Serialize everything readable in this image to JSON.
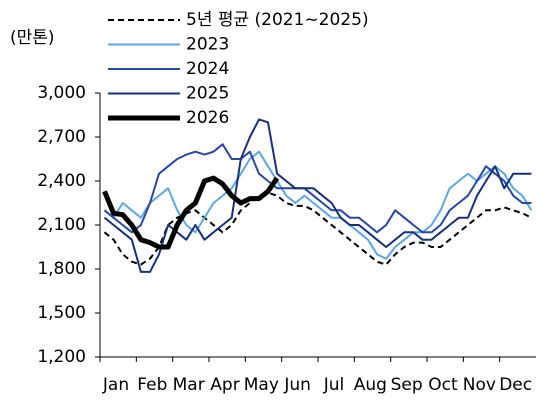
{
  "chart_data": {
    "type": "line",
    "y_label": "(만톤)",
    "categories": [
      "Jan",
      null,
      null,
      null,
      "Feb",
      null,
      null,
      null,
      "Mar",
      null,
      null,
      null,
      "Apr",
      null,
      null,
      null,
      "May",
      null,
      null,
      null,
      "Jun",
      null,
      null,
      null,
      "Jul",
      null,
      null,
      null,
      "Aug",
      null,
      null,
      null,
      "Sep",
      null,
      null,
      null,
      "Oct",
      null,
      null,
      null,
      "Nov",
      null,
      null,
      null,
      "Dec",
      null,
      null,
      null
    ],
    "ylim": [
      1200,
      3000
    ],
    "yticks": [
      {
        "value": 1200,
        "label": "1,200"
      },
      {
        "value": 1500,
        "label": "1,500"
      },
      {
        "value": 1800,
        "label": "1,800"
      },
      {
        "value": 2100,
        "label": "2,100"
      },
      {
        "value": 2400,
        "label": "2,400"
      },
      {
        "value": 2700,
        "label": "2,700"
      },
      {
        "value": 3000,
        "label": "3,000"
      }
    ],
    "series": [
      {
        "name": "5년 평균 (2021~2025)",
        "color": "#000000",
        "dash": true,
        "width": 2,
        "values": [
          2050,
          2000,
          1900,
          1850,
          1830,
          1870,
          1950,
          2100,
          2150,
          2180,
          2200,
          2150,
          2100,
          2050,
          2100,
          2200,
          2250,
          2300,
          2320,
          2300,
          2250,
          2230,
          2230,
          2200,
          2150,
          2100,
          2050,
          2000,
          1950,
          1900,
          1850,
          1830,
          1900,
          1950,
          1980,
          1980,
          1950,
          1950,
          2000,
          2050,
          2100,
          2150,
          2200,
          2200,
          2220,
          2200,
          2180,
          2150
        ]
      },
      {
        "name": "2023",
        "color": "#5aa9e6",
        "width": 2,
        "values": [
          2200,
          2150,
          2250,
          2200,
          2150,
          2250,
          2300,
          2350,
          2200,
          2100,
          2050,
          2150,
          2250,
          2300,
          2350,
          2450,
          2550,
          2600,
          2500,
          2400,
          2300,
          2250,
          2300,
          2250,
          2200,
          2150,
          2150,
          2100,
          2050,
          2000,
          1900,
          1870,
          1950,
          2000,
          2050,
          2050,
          2100,
          2200,
          2350,
          2400,
          2450,
          2400,
          2450,
          2500,
          2450,
          2350,
          2300,
          2200
        ]
      },
      {
        "name": "2024",
        "color": "#2846a8",
        "width": 2,
        "values": [
          2200,
          2150,
          2100,
          2050,
          2100,
          2250,
          2450,
          2500,
          2550,
          2580,
          2600,
          2580,
          2600,
          2650,
          2550,
          2550,
          2600,
          2450,
          2400,
          2350,
          2350,
          2350,
          2350,
          2300,
          2250,
          2200,
          2200,
          2150,
          2150,
          2100,
          2050,
          2100,
          2200,
          2150,
          2100,
          2050,
          2050,
          2100,
          2200,
          2250,
          2300,
          2400,
          2500,
          2450,
          2400,
          2300,
          2250,
          2250
        ]
      },
      {
        "name": "2025",
        "color": "#16307f",
        "width": 2,
        "values": [
          2150,
          2100,
          2050,
          2000,
          1780,
          1780,
          1900,
          2100,
          2050,
          2000,
          2100,
          2000,
          2050,
          2100,
          2150,
          2550,
          2700,
          2820,
          2800,
          2450,
          2400,
          2350,
          2350,
          2350,
          2300,
          2250,
          2150,
          2100,
          2100,
          2050,
          2000,
          1950,
          2000,
          2050,
          2050,
          2000,
          2000,
          2050,
          2100,
          2150,
          2150,
          2300,
          2400,
          2500,
          2350,
          2450,
          2450,
          2450
        ]
      },
      {
        "name": "2026",
        "color": "#000000",
        "width": 5,
        "values": [
          2330,
          2180,
          2170,
          2100,
          2000,
          1980,
          1950,
          1950,
          2100,
          2200,
          2250,
          2400,
          2420,
          2380,
          2300,
          2250,
          2280,
          2280,
          2330,
          2420,
          null,
          null,
          null,
          null,
          null,
          null,
          null,
          null,
          null,
          null,
          null,
          null,
          null,
          null,
          null,
          null,
          null,
          null,
          null,
          null,
          null,
          null,
          null,
          null,
          null,
          null,
          null,
          null
        ]
      }
    ]
  }
}
